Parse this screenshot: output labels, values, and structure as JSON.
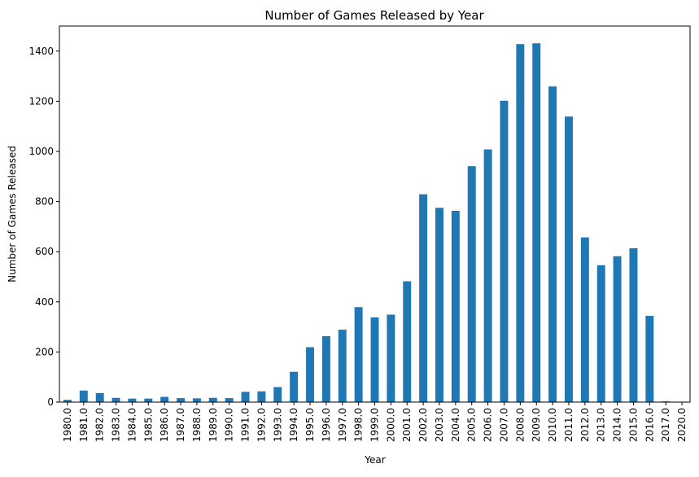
{
  "chart_data": {
    "type": "bar",
    "title": "Number of Games Released by Year",
    "xlabel": "Year",
    "ylabel": "Number of Games Released",
    "categories": [
      "1980.0",
      "1981.0",
      "1982.0",
      "1983.0",
      "1984.0",
      "1985.0",
      "1986.0",
      "1987.0",
      "1988.0",
      "1989.0",
      "1990.0",
      "1991.0",
      "1992.0",
      "1993.0",
      "1994.0",
      "1995.0",
      "1996.0",
      "1997.0",
      "1998.0",
      "1999.0",
      "2000.0",
      "2001.0",
      "2002.0",
      "2003.0",
      "2004.0",
      "2005.0",
      "2006.0",
      "2007.0",
      "2008.0",
      "2009.0",
      "2010.0",
      "2011.0",
      "2012.0",
      "2013.0",
      "2014.0",
      "2015.0",
      "2016.0",
      "2017.0",
      "2020.0"
    ],
    "values": [
      9,
      46,
      36,
      17,
      14,
      14,
      21,
      16,
      15,
      17,
      16,
      41,
      43,
      60,
      121,
      219,
      263,
      289,
      379,
      338,
      349,
      482,
      829,
      775,
      763,
      941,
      1008,
      1202,
      1428,
      1431,
      1259,
      1139,
      657,
      546,
      582,
      614,
      344,
      3,
      1
    ],
    "ylim": [
      0,
      1500
    ],
    "yticks": [
      0,
      200,
      400,
      600,
      800,
      1000,
      1200,
      1400
    ],
    "bar_color": "#1f77b4",
    "grid": false,
    "legend": "none"
  }
}
